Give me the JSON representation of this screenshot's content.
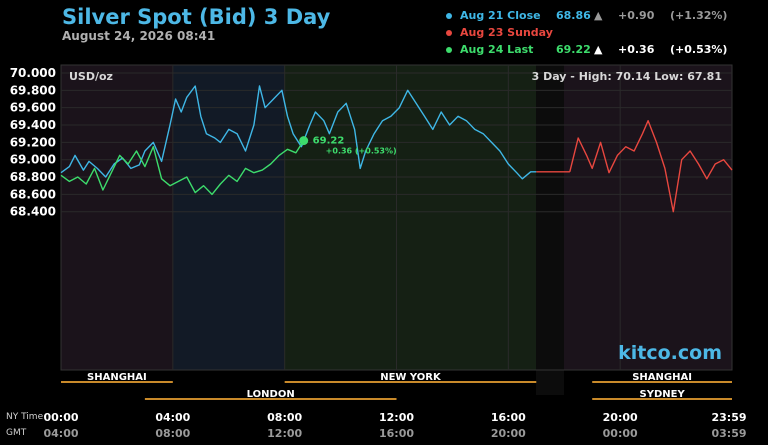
{
  "title": "Silver Spot (Bid) 3 Day",
  "timestamp": "August 24, 2026 08:41",
  "legend": [
    {
      "label": "Aug 21 Close",
      "value": "68.86",
      "arrow": "▲",
      "change": "+0.90",
      "pct": "(+1.32%)",
      "color": "#3fb7e6",
      "text_color": "#3fb7e6",
      "change_color": "#9a9a9a"
    },
    {
      "label": "Aug 23 Sunday",
      "value": "",
      "arrow": "",
      "change": "",
      "pct": "",
      "color": "#e8473f",
      "text_color": "#e8473f",
      "change_color": "#9a9a9a"
    },
    {
      "label": "Aug 24 Last",
      "value": "69.22",
      "arrow": "▲",
      "change": "+0.36",
      "pct": "(+0.53%)",
      "color": "#3ddc6c",
      "text_color": "#3ddc6c",
      "change_color": "#ffffff"
    }
  ],
  "unit_label": "USD/oz",
  "range_label": "3 Day - High: 70.14  Low: 67.81",
  "watermark": "kitco.com",
  "last_marker": {
    "value": "69.22",
    "change": "+0.36 (+0.53%)"
  },
  "time_labels": {
    "ny_label": "NY Time",
    "gmt_label": "GMT",
    "ny": [
      "00:00",
      "04:00",
      "08:00",
      "12:00",
      "16:00",
      "20:00",
      "23:59"
    ],
    "gmt": [
      "04:00",
      "08:00",
      "12:00",
      "16:00",
      "20:00",
      "00:00",
      "03:59"
    ]
  },
  "sessions": [
    {
      "name": "SHANGHAI",
      "start": 0,
      "end": 4
    },
    {
      "name": "NEW YORK",
      "start": 8,
      "end": 17
    },
    {
      "name": "SHANGHAI",
      "start": 19,
      "end": 24
    },
    {
      "name": "LONDON",
      "start": 3,
      "end": 12
    },
    {
      "name": "SYDNEY",
      "start": 19,
      "end": 24
    }
  ],
  "colors": {
    "aug21": "#3fb7e6",
    "aug23": "#e8473f",
    "aug24": "#3ddc6c",
    "watermark": "#4db8e6",
    "session_bar": "#c98a2a"
  },
  "chart_data": {
    "type": "line",
    "title": "Silver Spot (Bid) 3 Day",
    "ylabel": "USD/oz",
    "xlabel": "NY Time",
    "xlim": [
      0,
      24
    ],
    "ylim": [
      68.2,
      70.0
    ],
    "yticks": [
      "70.000",
      "69.800",
      "69.600",
      "69.400",
      "69.200",
      "69.000",
      "68.800",
      "68.600",
      "68.400"
    ],
    "ytick_values": [
      70.0,
      69.8,
      69.6,
      69.4,
      69.2,
      69.0,
      68.8,
      68.6,
      68.4
    ],
    "series": [
      {
        "name": "Aug 21 Close",
        "x": [
          0,
          0.3,
          0.5,
          0.8,
          1.0,
          1.3,
          1.6,
          1.9,
          2.2,
          2.5,
          2.8,
          3.0,
          3.3,
          3.6,
          3.9,
          4.1,
          4.3,
          4.5,
          4.8,
          5.0,
          5.2,
          5.5,
          5.7,
          6.0,
          6.3,
          6.6,
          6.9,
          7.1,
          7.3,
          7.6,
          7.9,
          8.1,
          8.3,
          8.6,
          8.9,
          9.1,
          9.4,
          9.6,
          9.9,
          10.2,
          10.5,
          10.7,
          10.9,
          11.2,
          11.5,
          11.8,
          12.1,
          12.4,
          12.7,
          13.0,
          13.3,
          13.6,
          13.9,
          14.2,
          14.5,
          14.8,
          15.1,
          15.4,
          15.7,
          16.0,
          16.3,
          16.5,
          16.8,
          17.0
        ],
        "values": [
          68.85,
          68.92,
          69.05,
          68.88,
          68.98,
          68.9,
          68.8,
          68.95,
          69.02,
          68.9,
          68.94,
          69.1,
          69.2,
          68.98,
          69.4,
          69.7,
          69.55,
          69.72,
          69.85,
          69.5,
          69.3,
          69.25,
          69.2,
          69.35,
          69.3,
          69.1,
          69.4,
          69.85,
          69.6,
          69.7,
          69.8,
          69.5,
          69.3,
          69.15,
          69.4,
          69.55,
          69.45,
          69.3,
          69.55,
          69.65,
          69.35,
          68.9,
          69.1,
          69.3,
          69.45,
          69.5,
          69.6,
          69.8,
          69.65,
          69.5,
          69.35,
          69.55,
          69.4,
          69.5,
          69.45,
          69.35,
          69.3,
          69.2,
          69.1,
          68.95,
          68.85,
          68.78,
          68.86,
          68.86
        ]
      },
      {
        "name": "Aug 23 Sunday",
        "x": [
          18.2,
          18.5,
          18.8,
          19.0,
          19.3,
          19.6,
          19.9,
          20.2,
          20.5,
          20.8,
          21.0,
          21.3,
          21.6,
          21.9,
          22.2,
          22.5,
          22.8,
          23.1,
          23.4,
          23.7,
          24.0
        ],
        "values": [
          68.86,
          69.25,
          69.05,
          68.9,
          69.2,
          68.85,
          69.05,
          69.15,
          69.1,
          69.3,
          69.45,
          69.2,
          68.9,
          68.4,
          69.0,
          69.1,
          68.95,
          68.78,
          68.95,
          69.0,
          68.88
        ]
      },
      {
        "name": "Aug 24 Last",
        "x": [
          0,
          0.3,
          0.6,
          0.9,
          1.2,
          1.5,
          1.8,
          2.1,
          2.4,
          2.7,
          3.0,
          3.3,
          3.6,
          3.9,
          4.2,
          4.5,
          4.8,
          5.1,
          5.4,
          5.7,
          6.0,
          6.3,
          6.6,
          6.9,
          7.2,
          7.5,
          7.8,
          8.1,
          8.4,
          8.68
        ],
        "values": [
          68.82,
          68.75,
          68.8,
          68.72,
          68.9,
          68.65,
          68.85,
          69.05,
          68.95,
          69.1,
          68.92,
          69.15,
          68.78,
          68.7,
          68.75,
          68.8,
          68.62,
          68.7,
          68.6,
          68.72,
          68.82,
          68.75,
          68.9,
          68.85,
          68.88,
          68.95,
          69.05,
          69.12,
          69.08,
          69.22
        ]
      }
    ]
  }
}
